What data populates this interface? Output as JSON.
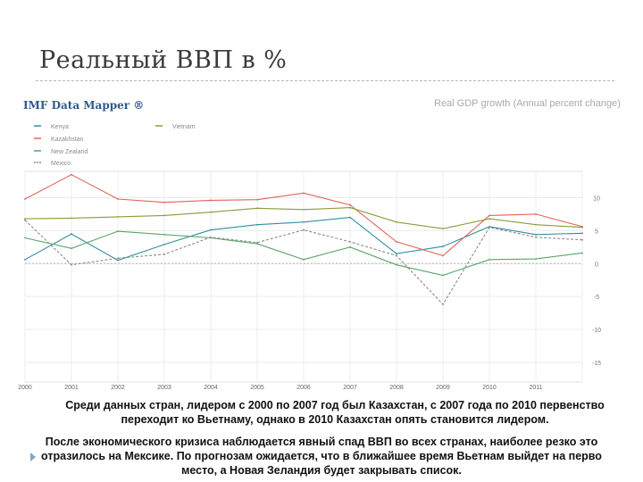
{
  "slide": {
    "title": "Реальный ВВП в %",
    "mapper_label": "IMF Data Mapper ®",
    "chart_heading": "Real GDP growth (Annual percent change)",
    "caption_1_line1": "Среди данных стран, лидером с 2000 по 2007 год был Казахстан, с 2007 года по 2010 первенство",
    "caption_1_line2": "переходит ко Вьетнаму, однако в 2010 Казахстан опять становится лидером.",
    "caption_2_line1": "После экономического кризиса наблюдается явный спад ВВП во всех странах, наиболее резко это",
    "caption_2_line2": "отразилось на Мексике. По прогнозам ожидается, что в ближайшее время Вьетнам выйдет на перво",
    "caption_2_line3": "место, а Новая Зеландия будет закрывать список."
  },
  "chart_data": {
    "type": "line",
    "title": "Real GDP growth (Annual percent change)",
    "x": [
      2000,
      2001,
      2002,
      2003,
      2004,
      2005,
      2006,
      2007,
      2008,
      2009,
      2010,
      2011,
      2012
    ],
    "x_tick_labels": [
      "2000",
      "2001",
      "2002",
      "2003",
      "2004",
      "2005",
      "2006",
      "2007",
      "2008",
      "2009",
      "2010",
      "2011"
    ],
    "ylim": [
      -18,
      14
    ],
    "y_ticks": [
      10,
      5,
      0,
      -5,
      -10,
      -15
    ],
    "grid": true,
    "legend_position": "top-left",
    "series": [
      {
        "name": "Kenya",
        "color": "#2f8fa0",
        "dash": "solid",
        "values": [
          0.6,
          4.5,
          0.5,
          2.9,
          5.1,
          5.9,
          6.3,
          7.0,
          1.5,
          2.6,
          5.6,
          4.4,
          4.6
        ]
      },
      {
        "name": "Kazakhstan",
        "color": "#e0645a",
        "dash": "solid",
        "values": [
          9.8,
          13.5,
          9.8,
          9.3,
          9.6,
          9.7,
          10.7,
          8.9,
          3.3,
          1.2,
          7.3,
          7.5,
          5.6
        ]
      },
      {
        "name": "New Zealand",
        "color": "#5aa36a",
        "dash": "solid",
        "values": [
          3.9,
          2.3,
          4.9,
          4.4,
          3.9,
          3.0,
          0.6,
          2.5,
          -0.2,
          -1.8,
          0.6,
          0.7,
          1.6
        ]
      },
      {
        "name": "Mexico",
        "color": "#8a8a8a",
        "dash": "dashed",
        "values": [
          6.6,
          -0.2,
          0.8,
          1.4,
          4.0,
          3.2,
          5.1,
          3.3,
          1.2,
          -6.2,
          5.5,
          4.0,
          3.6
        ]
      },
      {
        "name": "Vietnam",
        "color": "#8c9a3a",
        "dash": "solid",
        "values": [
          6.8,
          6.9,
          7.1,
          7.3,
          7.8,
          8.4,
          8.2,
          8.5,
          6.3,
          5.3,
          6.8,
          5.9,
          5.5
        ]
      }
    ]
  }
}
